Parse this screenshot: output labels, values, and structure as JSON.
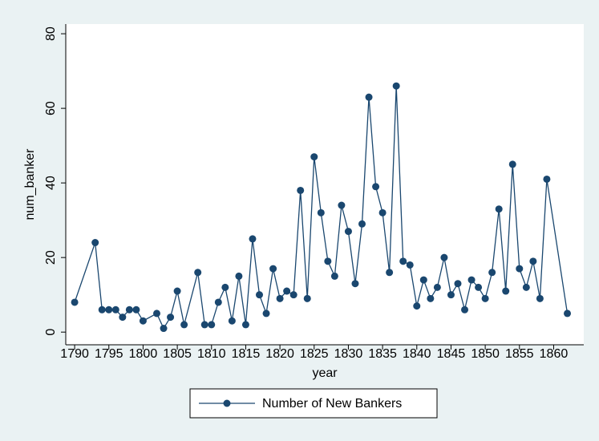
{
  "chart_data": {
    "type": "line",
    "x_label": "year",
    "y_label": "num_banker",
    "x": [
      1790,
      1793,
      1794,
      1795,
      1796,
      1797,
      1798,
      1799,
      1800,
      1802,
      1803,
      1804,
      1805,
      1806,
      1808,
      1809,
      1810,
      1811,
      1812,
      1813,
      1814,
      1815,
      1816,
      1817,
      1818,
      1819,
      1820,
      1821,
      1822,
      1823,
      1824,
      1825,
      1826,
      1827,
      1828,
      1829,
      1830,
      1831,
      1832,
      1833,
      1834,
      1835,
      1836,
      1837,
      1838,
      1839,
      1840,
      1841,
      1842,
      1843,
      1844,
      1845,
      1846,
      1847,
      1848,
      1849,
      1850,
      1851,
      1852,
      1853,
      1854,
      1855,
      1856,
      1857,
      1858,
      1859,
      1862
    ],
    "series": [
      {
        "name": "Number of New Bankers",
        "color": "#1a476f",
        "values": [
          8,
          24,
          6,
          6,
          6,
          4,
          6,
          6,
          3,
          5,
          1,
          4,
          11,
          2,
          16,
          2,
          2,
          8,
          12,
          3,
          15,
          2,
          25,
          10,
          5,
          17,
          9,
          11,
          10,
          38,
          9,
          47,
          32,
          19,
          15,
          34,
          27,
          13,
          29,
          63,
          39,
          32,
          16,
          66,
          19,
          18,
          7,
          14,
          9,
          12,
          20,
          10,
          13,
          6,
          14,
          12,
          9,
          16,
          33,
          11,
          45,
          17,
          12,
          19,
          9,
          41,
          5
        ]
      }
    ],
    "xlim": [
      1788.7,
      1864.4
    ],
    "ylim": [
      -3.4,
      82.6
    ],
    "xticks": [
      1790,
      1795,
      1800,
      1805,
      1810,
      1815,
      1820,
      1825,
      1830,
      1835,
      1840,
      1845,
      1850,
      1855,
      1860
    ],
    "yticks": [
      0,
      20,
      40,
      60,
      80
    ],
    "legend": "bottom"
  }
}
